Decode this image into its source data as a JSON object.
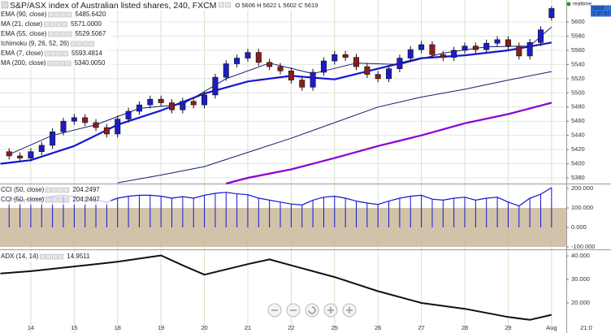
{
  "chart_data": [
    {
      "type": "candlestick",
      "title": "S&P/ASX index of Australian listed shares, 240, FXCM",
      "ohlc_label": "O 5606 H 5622 L 5602 C 5619",
      "status": "realtime",
      "last_price": "5619",
      "countdown": "2:37:57",
      "up_color": "#1c1cc8",
      "down_color": "#8b1c1c",
      "xlim": [
        -0.71,
        12.34
      ],
      "ylim": [
        5372,
        5631
      ],
      "yticks": [
        5380,
        5400,
        5420,
        5440,
        5460,
        5480,
        5500,
        5520,
        5540,
        5560,
        5580,
        5600
      ],
      "grid": true,
      "x": [
        -0.5,
        -0.25,
        0,
        0.25,
        0.5,
        0.75,
        1,
        1.25,
        1.5,
        1.75,
        2,
        2.25,
        2.5,
        2.75,
        3,
        3.25,
        3.5,
        3.75,
        4,
        4.25,
        4.5,
        4.75,
        5,
        5.25,
        5.5,
        5.75,
        6,
        6.25,
        6.5,
        6.75,
        7,
        7.25,
        7.5,
        7.75,
        8,
        8.25,
        8.5,
        8.75,
        9,
        9.25,
        9.5,
        9.75,
        10,
        10.25,
        10.5,
        10.75,
        11,
        11.25,
        11.5,
        11.75,
        12
      ],
      "open": [
        5417,
        5411,
        5408,
        5417,
        5426,
        5445,
        5460,
        5465,
        5458,
        5451,
        5442,
        5463,
        5474,
        5483,
        5491,
        5486,
        5476,
        5488,
        5483,
        5497,
        5522,
        5541,
        5549,
        5557,
        5543,
        5537,
        5531,
        5518,
        5508,
        5529,
        5545,
        5554,
        5550,
        5537,
        5526,
        5520,
        5534,
        5549,
        5561,
        5568,
        5554,
        5550,
        5560,
        5566,
        5561,
        5570,
        5575,
        5566,
        5552,
        5571,
        5606
      ],
      "high": [
        5422,
        5416,
        5422,
        5431,
        5450,
        5465,
        5470,
        5470,
        5463,
        5456,
        5468,
        5479,
        5488,
        5496,
        5496,
        5491,
        5493,
        5493,
        5502,
        5527,
        5546,
        5554,
        5562,
        5562,
        5548,
        5542,
        5536,
        5523,
        5534,
        5550,
        5559,
        5559,
        5555,
        5542,
        5531,
        5539,
        5554,
        5566,
        5573,
        5573,
        5559,
        5565,
        5571,
        5571,
        5575,
        5580,
        5580,
        5571,
        5576,
        5594,
        5622
      ],
      "low": [
        5406,
        5403,
        5403,
        5412,
        5421,
        5440,
        5455,
        5453,
        5446,
        5437,
        5437,
        5458,
        5469,
        5478,
        5481,
        5471,
        5471,
        5478,
        5478,
        5492,
        5517,
        5536,
        5544,
        5538,
        5532,
        5526,
        5513,
        5503,
        5503,
        5524,
        5540,
        5545,
        5532,
        5521,
        5515,
        5515,
        5529,
        5544,
        5556,
        5549,
        5545,
        5545,
        5555,
        5556,
        5556,
        5565,
        5561,
        5547,
        5547,
        5566,
        5602
      ],
      "close": [
        5411,
        5408,
        5417,
        5426,
        5445,
        5460,
        5465,
        5458,
        5451,
        5442,
        5463,
        5474,
        5483,
        5491,
        5486,
        5476,
        5488,
        5483,
        5497,
        5522,
        5541,
        5549,
        5557,
        5543,
        5537,
        5531,
        5518,
        5508,
        5529,
        5545,
        5554,
        5550,
        5537,
        5526,
        5520,
        5534,
        5549,
        5561,
        5568,
        5554,
        5550,
        5560,
        5566,
        5561,
        5570,
        5575,
        5566,
        5552,
        5571,
        5589,
        5619
      ],
      "series": [
        {
          "name": "EMA (90, close)",
          "value_label": "5485.6420",
          "color": "#8a00d4",
          "line_width": 2.2,
          "x": [
            4.5,
            5,
            6,
            7,
            8,
            9,
            10,
            11,
            12
          ],
          "values": [
            5372,
            5380,
            5392,
            5408,
            5425,
            5440,
            5457,
            5470,
            5486
          ]
        },
        {
          "name": "MA (21, close)",
          "value_label": "5571.0000",
          "color": "#1515d6",
          "line_width": 2.2,
          "x": [
            -0.7,
            0,
            1,
            2,
            3,
            4,
            5,
            6,
            7,
            8,
            9,
            10,
            11,
            12
          ],
          "values": [
            5400,
            5405,
            5425,
            5455,
            5475,
            5499,
            5516,
            5524,
            5519,
            5534,
            5549,
            5553,
            5560,
            5571
          ]
        },
        {
          "name": "EMA (55, close)",
          "value_label": "5529.5067",
          "color": "#1c1c70",
          "line_width": 1,
          "x": [
            2,
            3,
            4,
            5,
            6,
            7,
            8,
            9,
            10,
            11,
            12
          ],
          "values": [
            5373,
            5384,
            5396,
            5416,
            5436,
            5458,
            5480,
            5494,
            5505,
            5518,
            5530
          ]
        },
        {
          "name": "Ichimoku (9, 26, 52, 26)",
          "color": "#9a9a9a"
        },
        {
          "name": "EMA (7, close)",
          "value_label": "5593.4814",
          "color": "#1c1c70",
          "line_width": 1,
          "x": [
            -0.5,
            0.5,
            1.5,
            2.5,
            3.5,
            4.5,
            5.5,
            6.5,
            7.5,
            8.5,
            9.5,
            10.5,
            11.5,
            12
          ],
          "values": [
            5413,
            5440,
            5455,
            5478,
            5484,
            5520,
            5542,
            5527,
            5542,
            5540,
            5556,
            5565,
            5566,
            5593
          ]
        },
        {
          "name": "MA (200, close)",
          "value_label": "5340.0050",
          "color": "#1c1c70"
        }
      ]
    },
    {
      "type": "stem",
      "ylim": [
        -112.5,
        220.8
      ],
      "yticks": [
        {
          "value": 200,
          "label": "200.000"
        },
        {
          "value": 100,
          "label": "100.000"
        },
        {
          "value": 0,
          "label": "0.000"
        },
        {
          "value": -100,
          "label": "-100.000"
        }
      ],
      "band": [
        -100,
        100
      ],
      "band_color": "#c9b99b",
      "series": [
        {
          "name": "CCI (50, close)",
          "value_label": "204.2497",
          "color": "#1515d6",
          "values": [
            150,
            140,
            145,
            150,
            160,
            165,
            158,
            150,
            140,
            130,
            150,
            160,
            165,
            165,
            160,
            150,
            158,
            150,
            165,
            175,
            180,
            172,
            168,
            150,
            140,
            130,
            120,
            115,
            140,
            155,
            160,
            150,
            135,
            125,
            118,
            135,
            150,
            160,
            165,
            145,
            140,
            150,
            155,
            140,
            150,
            155,
            130,
            110,
            150,
            170,
            204.2497
          ]
        },
        {
          "name": "CCI (50, close)",
          "value_label": "204.2497",
          "color": "#1515d6"
        }
      ]
    },
    {
      "type": "line",
      "ylim": [
        7.2,
        42.1
      ],
      "yticks": [
        {
          "value": 40,
          "label": "40.000"
        },
        {
          "value": 30,
          "label": "30.000"
        },
        {
          "value": 20,
          "label": "20.000"
        }
      ],
      "xticks": [
        {
          "value": 0,
          "label": "14"
        },
        {
          "value": 1,
          "label": "15"
        },
        {
          "value": 2,
          "label": "18"
        },
        {
          "value": 3,
          "label": "19"
        },
        {
          "value": 4,
          "label": "20"
        },
        {
          "value": 5,
          "label": "21"
        },
        {
          "value": 6,
          "label": "22"
        },
        {
          "value": 7,
          "label": "25"
        },
        {
          "value": 8,
          "label": "26"
        },
        {
          "value": 9,
          "label": "27"
        },
        {
          "value": 10,
          "label": "28"
        },
        {
          "value": 11,
          "label": "29"
        },
        {
          "value": 12,
          "label": "Aug"
        },
        {
          "value": 12.8,
          "label": "21:0"
        }
      ],
      "series": [
        {
          "name": "ADX (14, 14)",
          "value_label": "14.9511",
          "color": "#111111",
          "line_width": 2,
          "x": [
            -0.7,
            0,
            1,
            2,
            3,
            3.5,
            4,
            5,
            5.5,
            6,
            7,
            8,
            9,
            10,
            11,
            11.5,
            12
          ],
          "values": [
            32.5,
            33.5,
            35.5,
            37.5,
            40.2,
            36,
            32,
            36.5,
            38.5,
            36,
            31,
            25,
            20,
            17.5,
            14,
            12.8,
            14.95
          ]
        }
      ]
    }
  ]
}
